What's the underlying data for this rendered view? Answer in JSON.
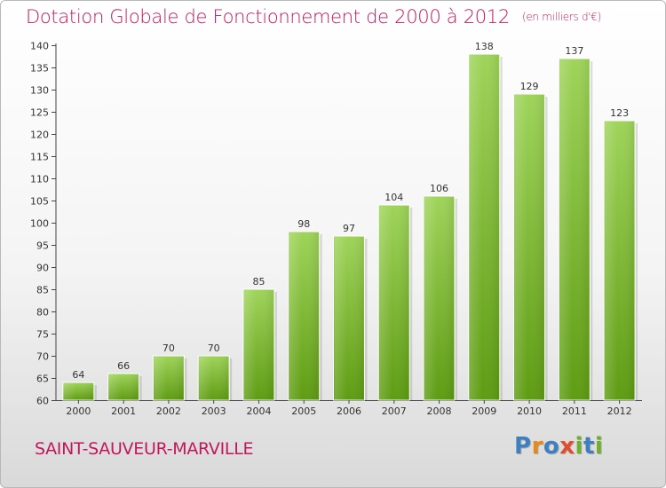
{
  "title": "Dotation Globale de Fonctionnement de 2000 à 2012",
  "unit_note": "(en milliers d'€)",
  "commune": "SAINT-SAUVEUR-MARVILLE",
  "brand": {
    "letters": [
      "P",
      "r",
      "o",
      "x",
      "i",
      "t",
      "i"
    ]
  },
  "colors": {
    "title": "#c2185b",
    "bar_top": "#9fd45a",
    "bar_bottom": "#5e9c12"
  },
  "chart_data": {
    "type": "bar",
    "title": "Dotation Globale de Fonctionnement de 2000 à 2012",
    "subtitle": "(en milliers d'€)",
    "categories": [
      "2000",
      "2001",
      "2002",
      "2003",
      "2004",
      "2005",
      "2006",
      "2007",
      "2008",
      "2009",
      "2010",
      "2011",
      "2012"
    ],
    "values": [
      64,
      66,
      70,
      70,
      85,
      98,
      97,
      104,
      106,
      138,
      129,
      137,
      123
    ],
    "ylim": [
      60,
      140
    ],
    "yticks": [
      60,
      65,
      70,
      75,
      80,
      85,
      90,
      95,
      100,
      105,
      110,
      115,
      120,
      125,
      130,
      135,
      140
    ],
    "grid": false,
    "legend": "none"
  }
}
